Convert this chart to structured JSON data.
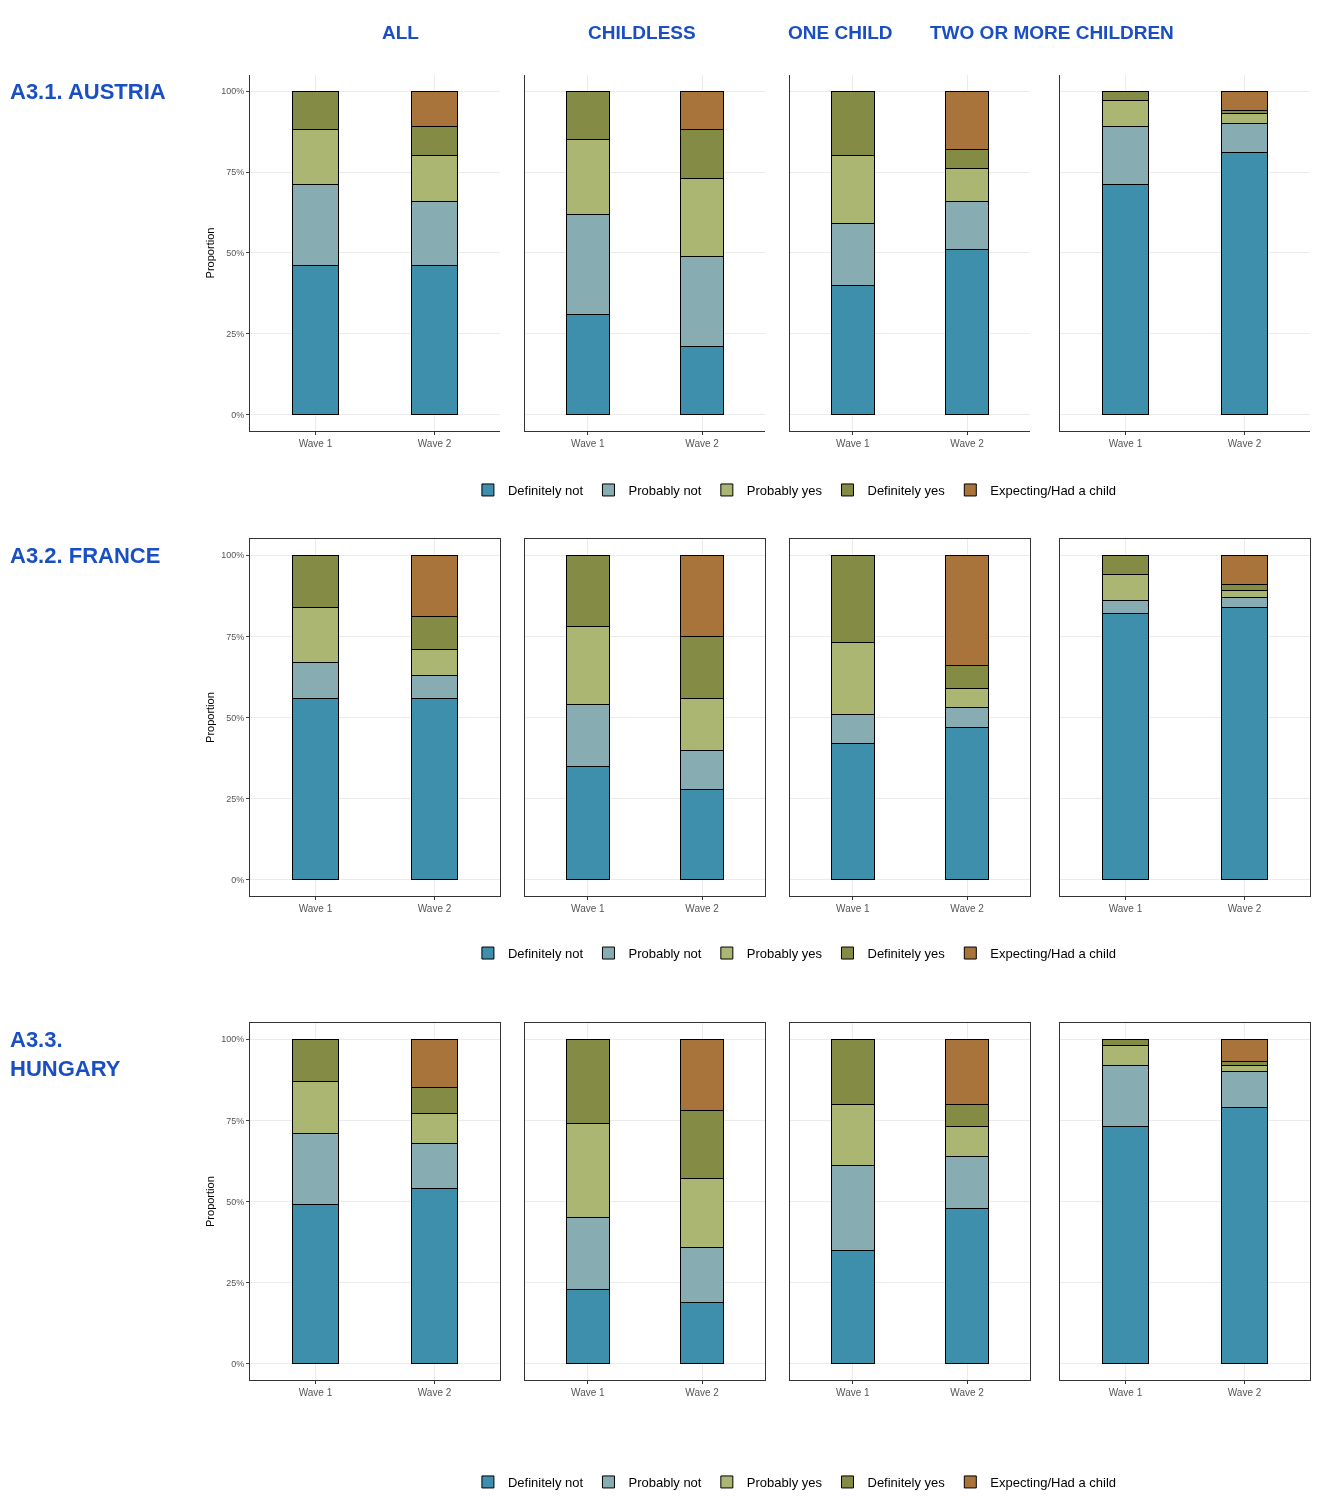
{
  "chart_data": [
    {
      "type": "bar",
      "stacked": true,
      "title": "ALL",
      "annotations": [
        "A3.1. AUSTRIA"
      ],
      "ylabel": "Proportion",
      "categories": [
        "Wave 1",
        "Wave 2"
      ],
      "ylim": [
        -5,
        105
      ],
      "yticks": [
        {
          "value": 0,
          "label": "0%"
        },
        {
          "value": 25,
          "label": "25%"
        },
        {
          "value": 50,
          "label": "50%"
        },
        {
          "value": 75,
          "label": "75%"
        },
        {
          "value": 100,
          "label": "100%"
        }
      ],
      "grid": true,
      "legend": "bottom",
      "series": [
        {
          "name": "Definitely not",
          "color": "#3d8fab",
          "values": [
            46,
            46
          ]
        },
        {
          "name": "Probably not",
          "color": "#87adb2",
          "values": [
            25,
            20
          ]
        },
        {
          "name": "Probably yes",
          "color": "#abb673",
          "values": [
            17,
            14
          ]
        },
        {
          "name": "Definitely yes",
          "color": "#838b45",
          "values": [
            12,
            9
          ]
        },
        {
          "name": "Expecting/Had a child",
          "color": "#a8743c",
          "values": [
            null,
            11
          ]
        }
      ]
    },
    {
      "type": "bar",
      "stacked": true,
      "title": "CHILDLESS",
      "categories": [
        "Wave 1",
        "Wave 2"
      ],
      "ylim": [
        -5,
        105
      ],
      "yticks": [
        {
          "value": 0,
          "label": null
        },
        {
          "value": 25,
          "label": null
        },
        {
          "value": 50,
          "label": null
        },
        {
          "value": 75,
          "label": null
        },
        {
          "value": 100,
          "label": null
        }
      ],
      "grid": true,
      "tick_labels": "x",
      "series": [
        {
          "color": "#3d8fab",
          "values": [
            31,
            21
          ]
        },
        {
          "color": "#87adb2",
          "values": [
            31,
            28
          ]
        },
        {
          "color": "#abb673",
          "values": [
            23,
            24
          ]
        },
        {
          "color": "#838b45",
          "values": [
            15,
            15
          ]
        },
        {
          "color": "#a8743c",
          "values": [
            null,
            12
          ]
        }
      ]
    },
    {
      "type": "bar",
      "stacked": true,
      "title": "ONE CHILD",
      "categories": [
        "Wave 1",
        "Wave 2"
      ],
      "ylim": [
        -5,
        105
      ],
      "yticks": [
        {
          "value": 0,
          "label": null
        },
        {
          "value": 25,
          "label": null
        },
        {
          "value": 50,
          "label": null
        },
        {
          "value": 75,
          "label": null
        },
        {
          "value": 100,
          "label": null
        }
      ],
      "grid": true,
      "tick_labels": "x",
      "series": [
        {
          "color": "#3d8fab",
          "values": [
            40,
            51
          ]
        },
        {
          "color": "#87adb2",
          "values": [
            19,
            15
          ]
        },
        {
          "color": "#abb673",
          "values": [
            21,
            10
          ]
        },
        {
          "color": "#838b45",
          "values": [
            20,
            6
          ]
        },
        {
          "color": "#a8743c",
          "values": [
            null,
            18
          ]
        }
      ]
    },
    {
      "type": "bar",
      "stacked": true,
      "title": "TWO OR MORE CHILDREN",
      "categories": [
        "Wave 1",
        "Wave 2"
      ],
      "ylim": [
        -5,
        105
      ],
      "yticks": [
        {
          "value": 0,
          "label": null
        },
        {
          "value": 25,
          "label": null
        },
        {
          "value": 50,
          "label": null
        },
        {
          "value": 75,
          "label": null
        },
        {
          "value": 100,
          "label": null
        }
      ],
      "grid": true,
      "tick_labels": "x",
      "series": [
        {
          "color": "#3d8fab",
          "values": [
            71,
            81
          ]
        },
        {
          "color": "#87adb2",
          "values": [
            18,
            9
          ]
        },
        {
          "color": "#abb673",
          "values": [
            8,
            3
          ]
        },
        {
          "color": "#838b45",
          "values": [
            3,
            1
          ]
        },
        {
          "color": "#a8743c",
          "values": [
            null,
            6
          ]
        }
      ]
    },
    {
      "type": "bar",
      "stacked": true,
      "annotations": [
        "A3.2. FRANCE"
      ],
      "ylabel": "Proportion",
      "categories": [
        "Wave 1",
        "Wave 2"
      ],
      "ylim": [
        -5,
        105
      ],
      "yticks": [
        {
          "value": 0,
          "label": "0%"
        },
        {
          "value": 25,
          "label": "25%"
        },
        {
          "value": 50,
          "label": "50%"
        },
        {
          "value": 75,
          "label": "75%"
        },
        {
          "value": 100,
          "label": "100%"
        }
      ],
      "grid": true,
      "legend": "bottom",
      "series": [
        {
          "name": "Definitely not",
          "color": "#3d8fab",
          "values": [
            56,
            56
          ]
        },
        {
          "name": "Probably not",
          "color": "#87adb2",
          "values": [
            11,
            7
          ]
        },
        {
          "name": "Probably yes",
          "color": "#abb673",
          "values": [
            17,
            8
          ]
        },
        {
          "name": "Definitely yes",
          "color": "#838b45",
          "values": [
            16,
            10
          ]
        },
        {
          "name": "Expecting/Had a child",
          "color": "#a8743c",
          "values": [
            null,
            19
          ]
        }
      ]
    },
    {
      "type": "bar",
      "stacked": true,
      "categories": [
        "Wave 1",
        "Wave 2"
      ],
      "ylim": [
        -5,
        105
      ],
      "yticks": [
        {
          "value": 0,
          "label": null
        },
        {
          "value": 25,
          "label": null
        },
        {
          "value": 50,
          "label": null
        },
        {
          "value": 75,
          "label": null
        },
        {
          "value": 100,
          "label": null
        }
      ],
      "grid": true,
      "tick_labels": "x",
      "series": [
        {
          "color": "#3d8fab",
          "values": [
            35,
            28
          ]
        },
        {
          "color": "#87adb2",
          "values": [
            19,
            12
          ]
        },
        {
          "color": "#abb673",
          "values": [
            24,
            16
          ]
        },
        {
          "color": "#838b45",
          "values": [
            22,
            19
          ]
        },
        {
          "color": "#a8743c",
          "values": [
            null,
            25
          ]
        }
      ]
    },
    {
      "type": "bar",
      "stacked": true,
      "categories": [
        "Wave 1",
        "Wave 2"
      ],
      "ylim": [
        -5,
        105
      ],
      "yticks": [
        {
          "value": 0,
          "label": null
        },
        {
          "value": 25,
          "label": null
        },
        {
          "value": 50,
          "label": null
        },
        {
          "value": 75,
          "label": null
        },
        {
          "value": 100,
          "label": null
        }
      ],
      "grid": true,
      "tick_labels": "x",
      "series": [
        {
          "color": "#3d8fab",
          "values": [
            42,
            47
          ]
        },
        {
          "color": "#87adb2",
          "values": [
            9,
            6
          ]
        },
        {
          "color": "#abb673",
          "values": [
            22,
            6
          ]
        },
        {
          "color": "#838b45",
          "values": [
            27,
            7
          ]
        },
        {
          "color": "#a8743c",
          "values": [
            null,
            34
          ]
        }
      ]
    },
    {
      "type": "bar",
      "stacked": true,
      "categories": [
        "Wave 1",
        "Wave 2"
      ],
      "ylim": [
        -5,
        105
      ],
      "yticks": [
        {
          "value": 0,
          "label": null
        },
        {
          "value": 25,
          "label": null
        },
        {
          "value": 50,
          "label": null
        },
        {
          "value": 75,
          "label": null
        },
        {
          "value": 100,
          "label": null
        }
      ],
      "grid": true,
      "tick_labels": "x",
      "series": [
        {
          "color": "#3d8fab",
          "values": [
            82,
            84
          ]
        },
        {
          "color": "#87adb2",
          "values": [
            4,
            3
          ]
        },
        {
          "color": "#abb673",
          "values": [
            8,
            2
          ]
        },
        {
          "color": "#838b45",
          "values": [
            6,
            2
          ]
        },
        {
          "color": "#a8743c",
          "values": [
            null,
            9
          ]
        }
      ]
    },
    {
      "type": "bar",
      "stacked": true,
      "annotations": [
        "A3.3.\nHUNGARY"
      ],
      "ylabel": "Proportion",
      "categories": [
        "Wave 1",
        "Wave 2"
      ],
      "ylim": [
        -5,
        105
      ],
      "yticks": [
        {
          "value": 0,
          "label": "0%"
        },
        {
          "value": 25,
          "label": "25%"
        },
        {
          "value": 50,
          "label": "50%"
        },
        {
          "value": 75,
          "label": "75%"
        },
        {
          "value": 100,
          "label": "100%"
        }
      ],
      "grid": true,
      "legend": "bottom",
      "series": [
        {
          "name": "Definitely not",
          "color": "#3d8fab",
          "values": [
            49,
            54
          ]
        },
        {
          "name": "Probably not",
          "color": "#87adb2",
          "values": [
            22,
            14
          ]
        },
        {
          "name": "Probably yes",
          "color": "#abb673",
          "values": [
            16,
            9
          ]
        },
        {
          "name": "Definitely yes",
          "color": "#838b45",
          "values": [
            13,
            8
          ]
        },
        {
          "name": "Expecting/Had a child",
          "color": "#a8743c",
          "values": [
            null,
            15
          ]
        }
      ]
    },
    {
      "type": "bar",
      "stacked": true,
      "categories": [
        "Wave 1",
        "Wave 2"
      ],
      "ylim": [
        -5,
        105
      ],
      "yticks": [
        {
          "value": 0,
          "label": null
        },
        {
          "value": 25,
          "label": null
        },
        {
          "value": 50,
          "label": null
        },
        {
          "value": 75,
          "label": null
        },
        {
          "value": 100,
          "label": null
        }
      ],
      "grid": true,
      "tick_labels": "x",
      "series": [
        {
          "color": "#3d8fab",
          "values": [
            23,
            19
          ]
        },
        {
          "color": "#87adb2",
          "values": [
            22,
            17
          ]
        },
        {
          "color": "#abb673",
          "values": [
            29,
            21
          ]
        },
        {
          "color": "#838b45",
          "values": [
            26,
            21
          ]
        },
        {
          "color": "#a8743c",
          "values": [
            null,
            22
          ]
        }
      ]
    },
    {
      "type": "bar",
      "stacked": true,
      "categories": [
        "Wave 1",
        "Wave 2"
      ],
      "ylim": [
        -5,
        105
      ],
      "yticks": [
        {
          "value": 0,
          "label": null
        },
        {
          "value": 25,
          "label": null
        },
        {
          "value": 50,
          "label": null
        },
        {
          "value": 75,
          "label": null
        },
        {
          "value": 100,
          "label": null
        }
      ],
      "grid": true,
      "tick_labels": "x",
      "series": [
        {
          "color": "#3d8fab",
          "values": [
            35,
            48
          ]
        },
        {
          "color": "#87adb2",
          "values": [
            26,
            16
          ]
        },
        {
          "color": "#abb673",
          "values": [
            19,
            9
          ]
        },
        {
          "color": "#838b45",
          "values": [
            20,
            7
          ]
        },
        {
          "color": "#a8743c",
          "values": [
            null,
            20
          ]
        }
      ]
    },
    {
      "type": "bar",
      "stacked": true,
      "categories": [
        "Wave 1",
        "Wave 2"
      ],
      "ylim": [
        -5,
        105
      ],
      "yticks": [
        {
          "value": 0,
          "label": null
        },
        {
          "value": 25,
          "label": null
        },
        {
          "value": 50,
          "label": null
        },
        {
          "value": 75,
          "label": null
        },
        {
          "value": 100,
          "label": null
        }
      ],
      "grid": true,
      "tick_labels": "x",
      "series": [
        {
          "color": "#3d8fab",
          "values": [
            73,
            79
          ]
        },
        {
          "color": "#87adb2",
          "values": [
            19,
            11
          ]
        },
        {
          "color": "#abb673",
          "values": [
            6,
            2
          ]
        },
        {
          "color": "#838b45",
          "values": [
            2,
            1
          ]
        },
        {
          "color": "#a8743c",
          "values": [
            null,
            7
          ]
        }
      ]
    }
  ]
}
